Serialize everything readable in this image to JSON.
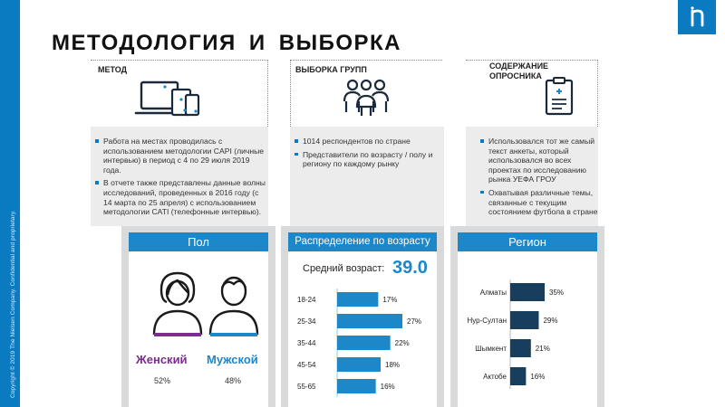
{
  "page": {
    "title": "МЕТОДОЛОГИЯ И ВЫБОРКА",
    "copyright": "Copyright © 2019 The Nielsen Company. Confidential and proprietary."
  },
  "colors": {
    "accent": "#1c87c9",
    "strip": "#0b7bc1",
    "female": "#7b2d8e",
    "male": "#1c87c9"
  },
  "columns": [
    {
      "heading": "МЕТОД",
      "icon": "devices-icon",
      "bullets": [
        "Работа на местах проводилась с использованием методологии CAPI (личные интервью) в период с 4 по 29 июля 2019 года.",
        "В отчете также представлены данные волны исследований, проведенных в 2016 году (с 14 марта по 25 апреля) с использованием методологии CATI (телефонные интервью)."
      ]
    },
    {
      "heading": "ВЫБОРКА ГРУПП",
      "icon": "people-group-icon",
      "bullets": [
        "1014 респондентов по стране",
        "Представители по возрасту / полу и региону по каждому рынку"
      ]
    },
    {
      "heading": "СОДЕРЖАНИЕ ОПРОСНИКА",
      "icon": "clipboard-icon",
      "bullets": [
        "Использовался тот же самый текст анкеты, который использовался во всех проектах по исследованию рынка УЕФА ГРОУ",
        "Охватывая различные темы, связанные с текущим состоянием футбола в стране"
      ]
    }
  ],
  "panels": {
    "gender": {
      "title": "Пол",
      "female_label": "Женский",
      "female_pct": "52%",
      "male_label": "Мужской",
      "male_pct": "48%"
    },
    "age": {
      "title": "Распределение по возрасту",
      "avg_label": "Средний возраст:",
      "avg_value": "39.0"
    },
    "region": {
      "title": "Регион"
    }
  },
  "chart_data": [
    {
      "type": "bar",
      "orientation": "horizontal",
      "title": "Распределение по возрасту",
      "categories": [
        "18-24",
        "25-34",
        "35-44",
        "45-54",
        "55-65"
      ],
      "values": [
        17,
        27,
        22,
        18,
        16
      ],
      "labels": [
        "17%",
        "27%",
        "22%",
        "18%",
        "16%"
      ],
      "unit": "%",
      "xlim": [
        0,
        27
      ],
      "grid": false,
      "color": "#1c87c9"
    },
    {
      "type": "bar",
      "orientation": "horizontal",
      "title": "Регион",
      "categories": [
        "Алматы",
        "Нур-Султан",
        "Шымкент",
        "Актобе"
      ],
      "values": [
        35,
        29,
        21,
        16
      ],
      "labels": [
        "35%",
        "29%",
        "21%",
        "16%"
      ],
      "unit": "%",
      "xlim": [
        0,
        35
      ],
      "grid": false,
      "color": "#173e5c"
    }
  ]
}
